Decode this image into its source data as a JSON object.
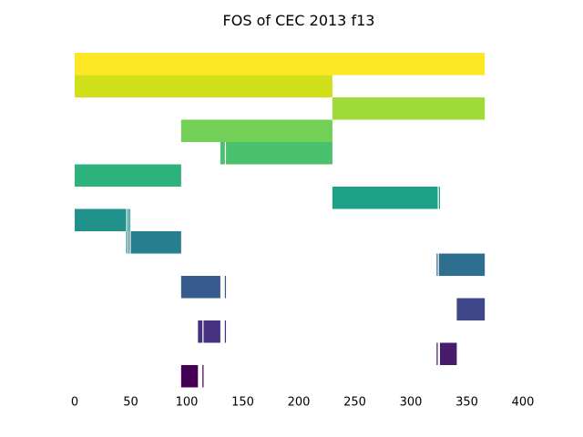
{
  "chart_data": {
    "type": "bar",
    "orientation": "horizontal-broken",
    "title": "FOS of CEC 2013 f13",
    "xlabel": "",
    "ylabel": "",
    "xlim": [
      0,
      400
    ],
    "x_ticks": [
      0,
      50,
      100,
      150,
      200,
      250,
      300,
      350,
      400
    ],
    "grid": false,
    "y_axis_visible": false,
    "rows": [
      {
        "color": "#fde725",
        "segments": [
          [
            0,
            366
          ]
        ]
      },
      {
        "color": "#d0e11c",
        "segments": [
          [
            0,
            230
          ]
        ]
      },
      {
        "color": "#a0da39",
        "segments": [
          [
            230,
            366
          ]
        ]
      },
      {
        "color": "#73d056",
        "segments": [
          [
            95,
            230
          ]
        ]
      },
      {
        "color": "#4ac16d",
        "segments": [
          [
            130,
            134
          ],
          [
            135,
            230
          ]
        ]
      },
      {
        "color": "#2db27d",
        "segments": [
          [
            0,
            95
          ]
        ]
      },
      {
        "color": "#1fa187",
        "segments": [
          [
            230,
            324
          ],
          [
            325,
            326
          ]
        ]
      },
      {
        "color": "#21918c",
        "segments": [
          [
            0,
            46
          ],
          [
            47,
            48
          ],
          [
            48.5,
            49.5
          ]
        ]
      },
      {
        "color": "#277f8e",
        "segments": [
          [
            46,
            47
          ],
          [
            48,
            49
          ],
          [
            50,
            95
          ]
        ]
      },
      {
        "color": "#2e6e8e",
        "segments": [
          [
            323,
            324
          ],
          [
            325,
            366
          ]
        ]
      },
      {
        "color": "#365c8d",
        "segments": [
          [
            95,
            130
          ],
          [
            134,
            135
          ]
        ]
      },
      {
        "color": "#3f4788",
        "segments": [
          [
            341,
            366
          ]
        ]
      },
      {
        "color": "#46327e",
        "segments": [
          [
            110,
            114
          ],
          [
            115,
            130
          ],
          [
            134,
            135
          ]
        ]
      },
      {
        "color": "#481b6d",
        "segments": [
          [
            323,
            324
          ],
          [
            326,
            341
          ]
        ]
      },
      {
        "color": "#440154",
        "segments": [
          [
            95,
            110
          ],
          [
            114,
            115
          ]
        ]
      }
    ]
  }
}
